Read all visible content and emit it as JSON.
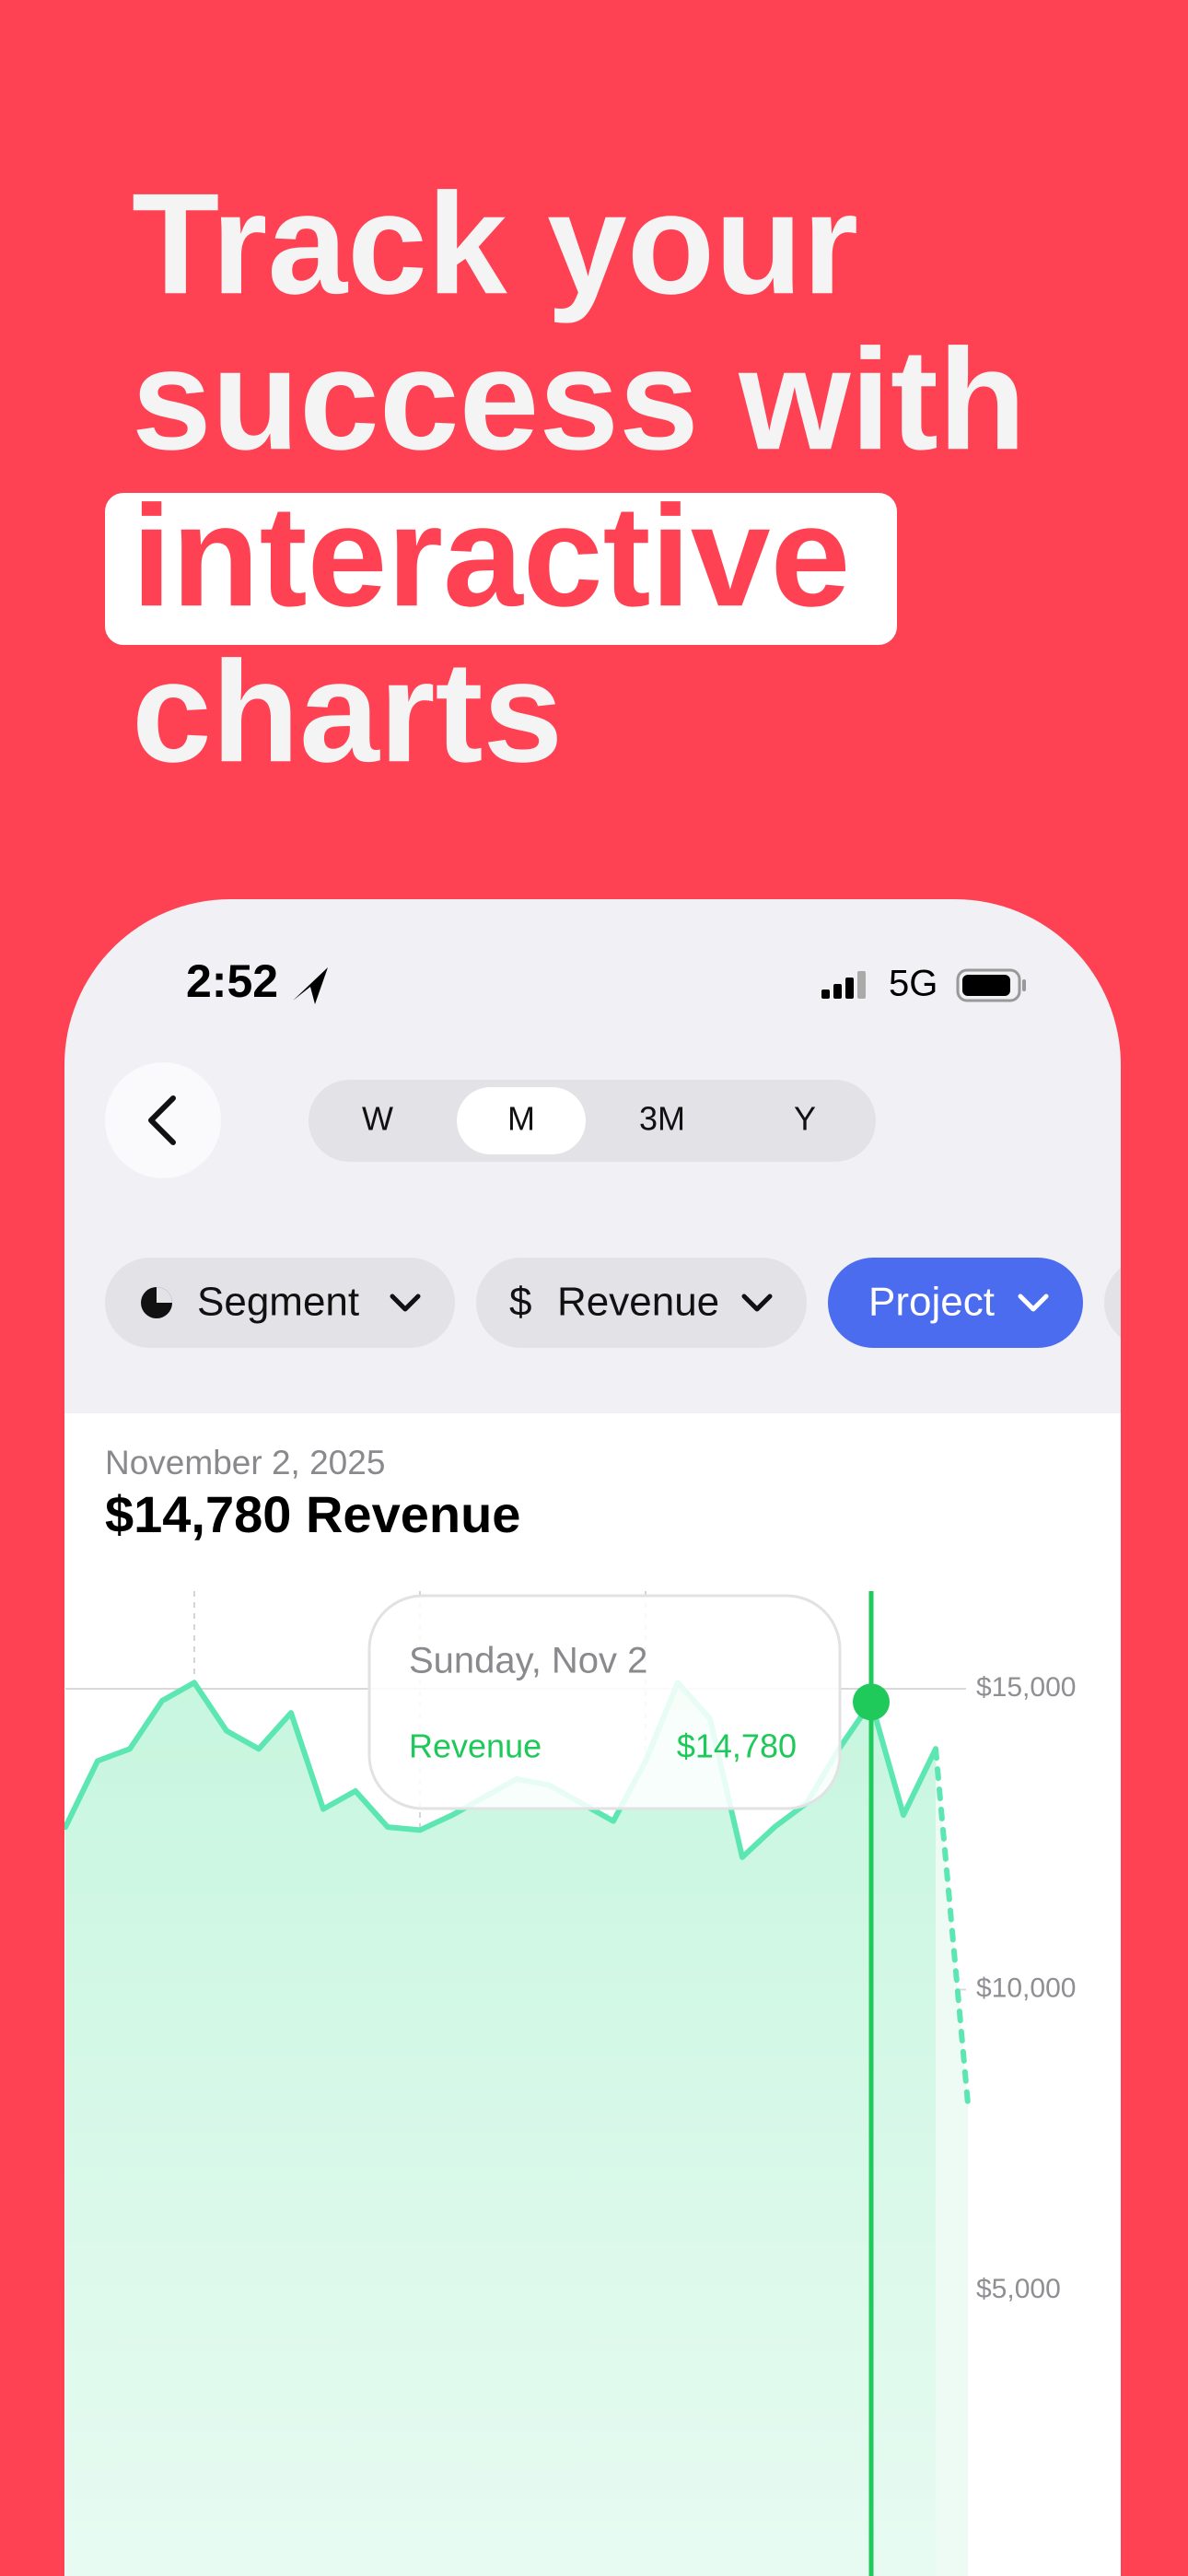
{
  "headline": [
    {
      "text": "Track your"
    },
    {
      "text": "success with"
    },
    {
      "text": "interactive",
      "highlighted": true
    },
    {
      "text": "charts"
    }
  ],
  "status_bar": {
    "time": "2:52",
    "network": "5G"
  },
  "periods": [
    {
      "label": "W"
    },
    {
      "label": "M",
      "selected": true
    },
    {
      "label": "3M"
    },
    {
      "label": "Y"
    }
  ],
  "filters": [
    {
      "label": "Segment"
    },
    {
      "prefix": "$",
      "label": "Revenue"
    },
    {
      "label": "Project",
      "active": true
    }
  ],
  "chart_data": {
    "type": "area",
    "subtitle": "November 2, 2025",
    "title": "$14,780 Revenue",
    "tooltip": {
      "title": "Sunday, Nov 2",
      "label": "Revenue",
      "value": "$14,780"
    },
    "selected": 25,
    "series": [
      {
        "color": "#5ce6b2",
        "values": [
          12700,
          13800,
          14000,
          14800,
          15100,
          14300,
          14000,
          14600,
          13000,
          13300,
          12700,
          12650,
          12900,
          13200,
          13500,
          13400,
          13100,
          12800,
          13800,
          15100,
          14500,
          12200,
          12700,
          13100,
          14000,
          14780,
          12900,
          14000,
          null
        ]
      },
      {
        "color": "#5ce6b2",
        "dashed": true,
        "values": [
          null,
          null,
          null,
          null,
          null,
          null,
          null,
          null,
          null,
          null,
          null,
          null,
          null,
          null,
          null,
          null,
          null,
          null,
          null,
          null,
          null,
          null,
          null,
          null,
          null,
          null,
          null,
          14000,
          8100
        ]
      }
    ],
    "ylim": [
      0,
      16500
    ],
    "yticks": [
      {
        "value": 5000,
        "label": "$5,000"
      },
      {
        "value": 10000,
        "label": "$10,000"
      },
      {
        "value": 15000,
        "label": "$15,000"
      }
    ],
    "grid": true
  }
}
